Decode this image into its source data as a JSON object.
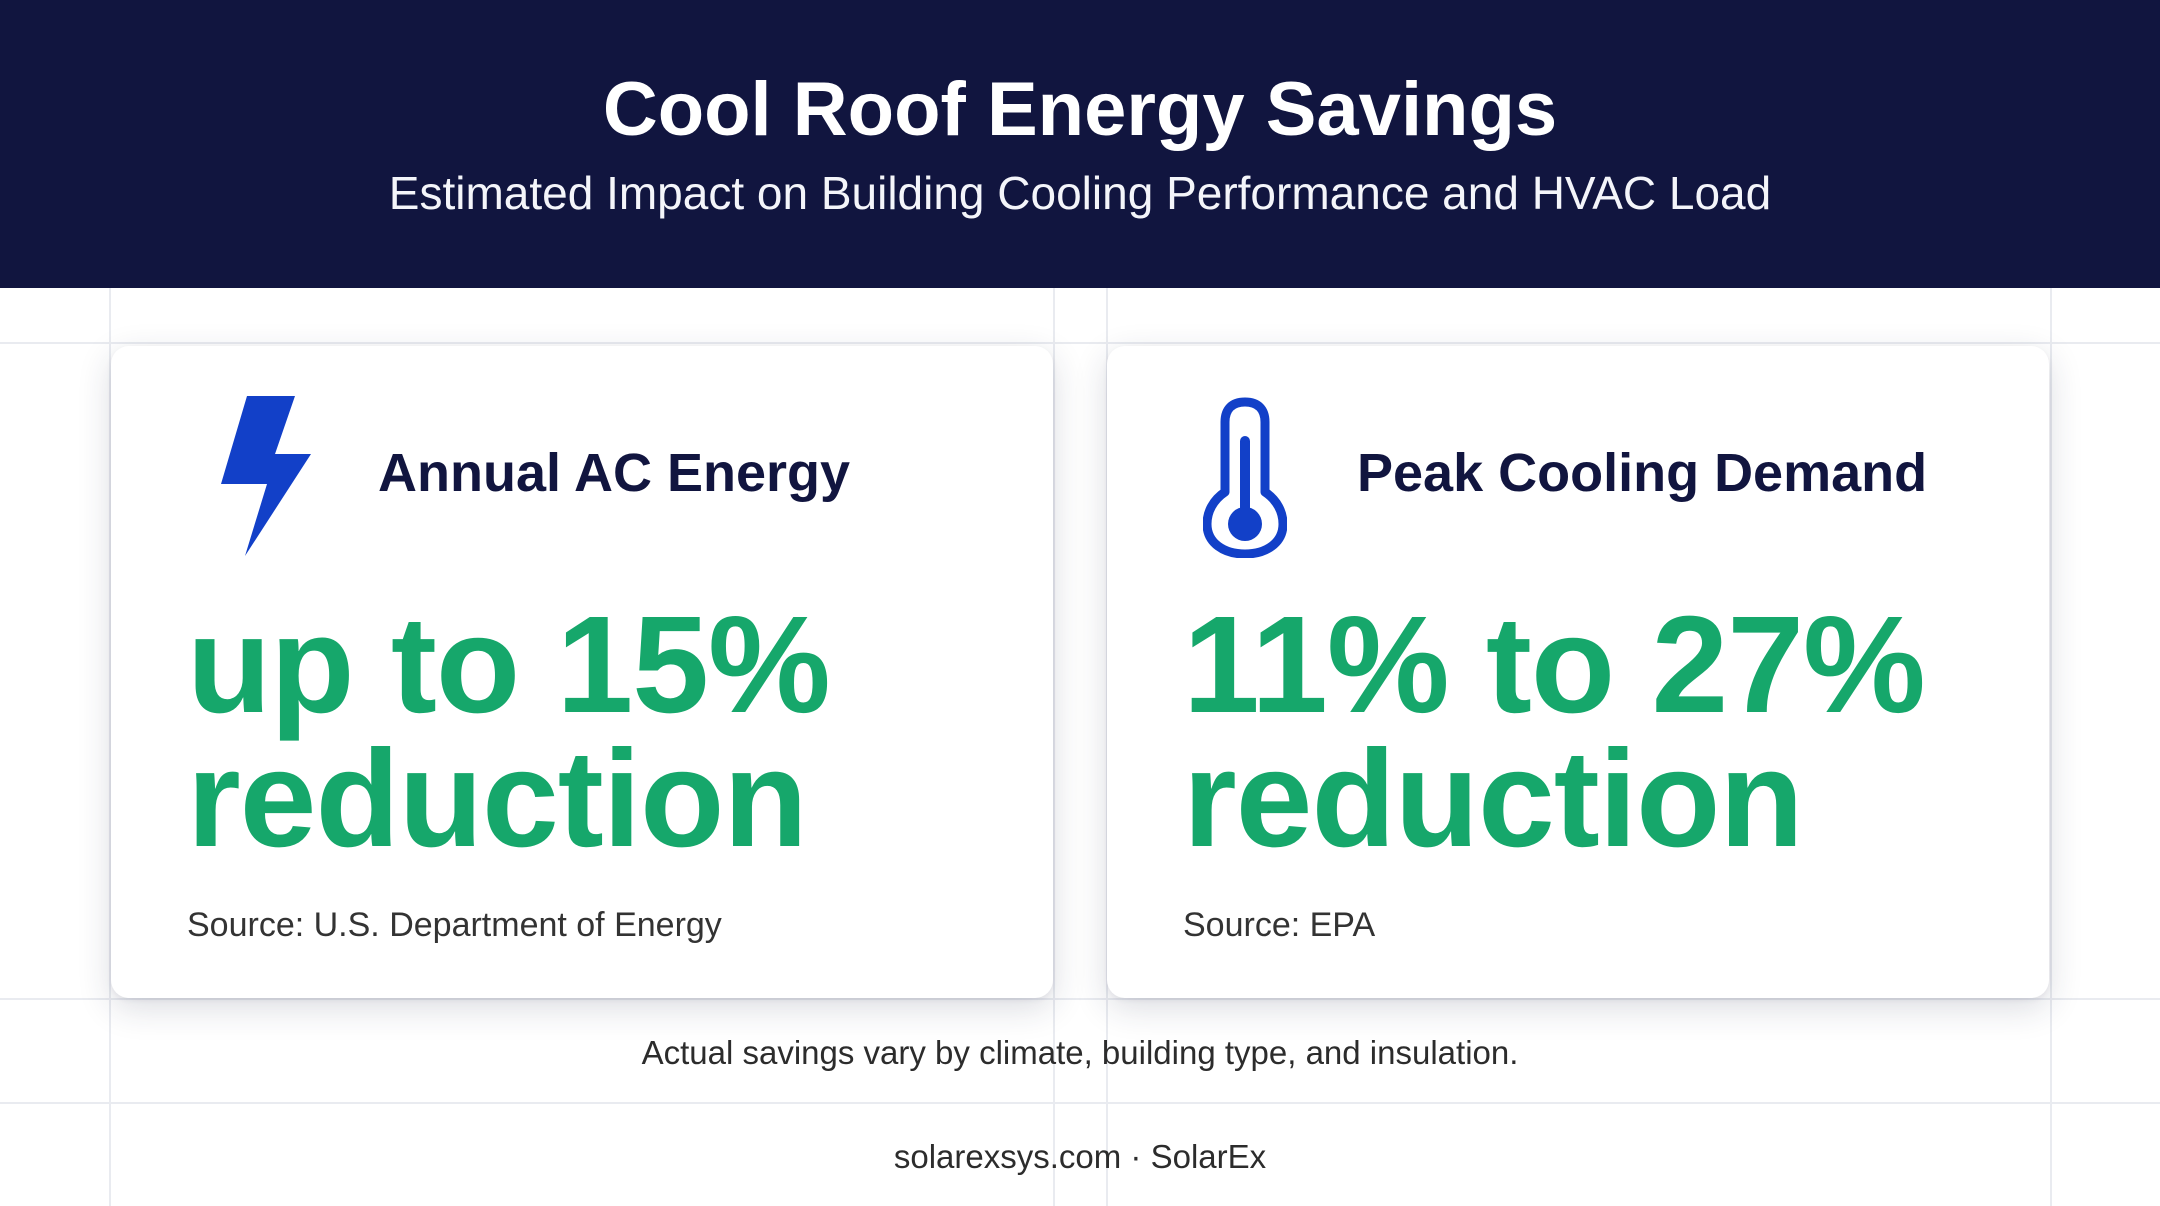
{
  "header": {
    "title": "Cool Roof Energy Savings",
    "subtitle": "Estimated Impact on Building Cooling Performance and HVAC Load"
  },
  "cards": [
    {
      "icon": "lightning-bolt-icon",
      "heading": "Annual AC Energy",
      "value_line1": "up to 15%",
      "value_line2": "reduction",
      "source": "Source: U.S. Department of Energy"
    },
    {
      "icon": "thermometer-icon",
      "heading": "Peak Cooling Demand",
      "value_line1": "11% to 27%",
      "value_line2": "reduction",
      "source": "Source: EPA"
    }
  ],
  "disclaimer": "Actual savings vary by climate, building type, and insulation.",
  "footer": "solarexsys.com · SolarEx",
  "colors": {
    "header_background": "#11153f",
    "accent_green": "#16a76b",
    "icon_blue": "#1240c8",
    "heading_navy": "#11153f"
  }
}
